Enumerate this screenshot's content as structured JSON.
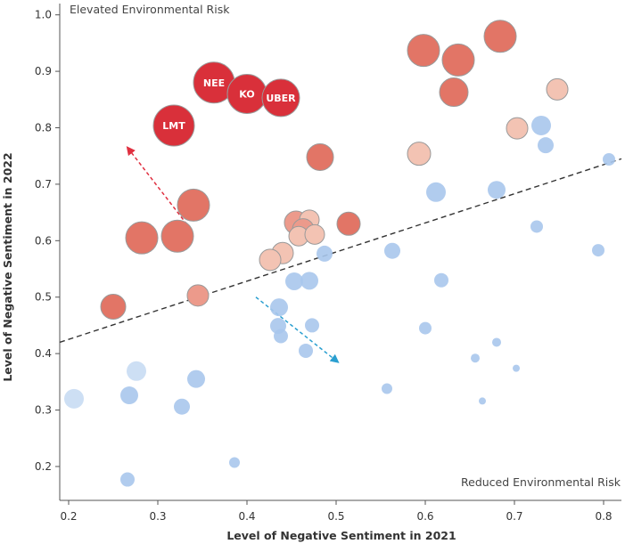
{
  "chart_data": {
    "type": "scatter",
    "xlabel": "Level of Negative Sentiment in 2021",
    "ylabel": "Level of Negative Sentiment in 2022",
    "xlim": [
      0.19,
      0.82
    ],
    "ylim": [
      0.14,
      1.02
    ],
    "xticks": [
      "0.2",
      "0.3",
      "0.4",
      "0.5",
      "0.6",
      "0.7",
      "0.8"
    ],
    "xtick_values": [
      0.2,
      0.3,
      0.4,
      0.5,
      0.6,
      0.7,
      0.8
    ],
    "yticks": [
      "0.2",
      "0.3",
      "0.4",
      "0.5",
      "0.6",
      "0.7",
      "0.8",
      "0.9",
      "1.0"
    ],
    "ytick_values": [
      0.2,
      0.3,
      0.4,
      0.5,
      0.6,
      0.7,
      0.8,
      0.9,
      1.0
    ],
    "grid": false,
    "annotations": {
      "top_left": "Elevated Environmental Risk",
      "bottom_right": "Reduced Environmental Risk"
    },
    "trend_line": {
      "x": [
        0.19,
        0.82
      ],
      "y": [
        0.42,
        0.745
      ]
    },
    "arrows": [
      {
        "from": [
          0.337,
          0.62
        ],
        "to": [
          0.266,
          0.765
        ],
        "color": "#e03040"
      },
      {
        "from": [
          0.41,
          0.5
        ],
        "to": [
          0.502,
          0.385
        ],
        "color": "#2a9fd0"
      }
    ],
    "colors": {
      "risk_dark": "#d9303a",
      "risk_mid": "#e27566",
      "risk_light": "#f3c3b3",
      "reduced_mid": "#a8c6ec",
      "reduced_light": "#c8dbf3",
      "trend": "#333333"
    },
    "points": [
      {
        "x": 0.318,
        "y": 0.804,
        "r": 23,
        "color": "#d9303a",
        "label": "LMT"
      },
      {
        "x": 0.363,
        "y": 0.88,
        "r": 23,
        "color": "#d9303a",
        "label": "NEE"
      },
      {
        "x": 0.4,
        "y": 0.86,
        "r": 22,
        "color": "#d9303a",
        "label": "KO"
      },
      {
        "x": 0.438,
        "y": 0.853,
        "r": 21,
        "color": "#d9303a",
        "label": "UBER"
      },
      {
        "x": 0.598,
        "y": 0.937,
        "r": 18,
        "color": "#e27566"
      },
      {
        "x": 0.637,
        "y": 0.92,
        "r": 18,
        "color": "#e27566"
      },
      {
        "x": 0.684,
        "y": 0.962,
        "r": 18,
        "color": "#e27566"
      },
      {
        "x": 0.632,
        "y": 0.863,
        "r": 16,
        "color": "#e27566"
      },
      {
        "x": 0.748,
        "y": 0.868,
        "r": 12,
        "color": "#f3c3b3"
      },
      {
        "x": 0.703,
        "y": 0.799,
        "r": 12,
        "color": "#f3c3b3"
      },
      {
        "x": 0.593,
        "y": 0.754,
        "r": 13,
        "color": "#f3c3b3"
      },
      {
        "x": 0.482,
        "y": 0.748,
        "r": 15,
        "color": "#e27566"
      },
      {
        "x": 0.34,
        "y": 0.663,
        "r": 18,
        "color": "#e27566"
      },
      {
        "x": 0.282,
        "y": 0.605,
        "r": 18,
        "color": "#e27566"
      },
      {
        "x": 0.322,
        "y": 0.608,
        "r": 18,
        "color": "#e27566"
      },
      {
        "x": 0.25,
        "y": 0.483,
        "r": 14,
        "color": "#e27566"
      },
      {
        "x": 0.345,
        "y": 0.503,
        "r": 12,
        "color": "#ec9a8b"
      },
      {
        "x": 0.514,
        "y": 0.63,
        "r": 13,
        "color": "#e27566"
      },
      {
        "x": 0.455,
        "y": 0.632,
        "r": 13,
        "color": "#ec9a8b"
      },
      {
        "x": 0.47,
        "y": 0.637,
        "r": 11,
        "color": "#f3c3b3"
      },
      {
        "x": 0.463,
        "y": 0.62,
        "r": 12,
        "color": "#ec9a8b"
      },
      {
        "x": 0.458,
        "y": 0.608,
        "r": 11,
        "color": "#f3c3b3"
      },
      {
        "x": 0.476,
        "y": 0.611,
        "r": 11,
        "color": "#f3c3b3"
      },
      {
        "x": 0.44,
        "y": 0.578,
        "r": 12,
        "color": "#f3c3b3"
      },
      {
        "x": 0.426,
        "y": 0.566,
        "r": 12,
        "color": "#f3c3b3"
      },
      {
        "x": 0.73,
        "y": 0.804,
        "r": 11,
        "color": "#a8c6ec"
      },
      {
        "x": 0.735,
        "y": 0.769,
        "r": 9,
        "color": "#a8c6ec"
      },
      {
        "x": 0.806,
        "y": 0.744,
        "r": 7,
        "color": "#a8c6ec"
      },
      {
        "x": 0.612,
        "y": 0.686,
        "r": 11,
        "color": "#a8c6ec"
      },
      {
        "x": 0.68,
        "y": 0.69,
        "r": 10,
        "color": "#a8c6ec"
      },
      {
        "x": 0.725,
        "y": 0.625,
        "r": 7,
        "color": "#a8c6ec"
      },
      {
        "x": 0.794,
        "y": 0.583,
        "r": 7,
        "color": "#a8c6ec"
      },
      {
        "x": 0.563,
        "y": 0.582,
        "r": 9,
        "color": "#a8c6ec"
      },
      {
        "x": 0.487,
        "y": 0.577,
        "r": 9,
        "color": "#a8c6ec"
      },
      {
        "x": 0.618,
        "y": 0.53,
        "r": 8,
        "color": "#a8c6ec"
      },
      {
        "x": 0.453,
        "y": 0.528,
        "r": 10,
        "color": "#a8c6ec"
      },
      {
        "x": 0.47,
        "y": 0.529,
        "r": 10,
        "color": "#a8c6ec"
      },
      {
        "x": 0.436,
        "y": 0.482,
        "r": 10,
        "color": "#a8c6ec"
      },
      {
        "x": 0.435,
        "y": 0.449,
        "r": 9,
        "color": "#a8c6ec"
      },
      {
        "x": 0.473,
        "y": 0.45,
        "r": 8,
        "color": "#a8c6ec"
      },
      {
        "x": 0.438,
        "y": 0.431,
        "r": 8,
        "color": "#a8c6ec"
      },
      {
        "x": 0.466,
        "y": 0.405,
        "r": 8,
        "color": "#a8c6ec"
      },
      {
        "x": 0.6,
        "y": 0.445,
        "r": 7,
        "color": "#a8c6ec"
      },
      {
        "x": 0.68,
        "y": 0.42,
        "r": 5,
        "color": "#a8c6ec"
      },
      {
        "x": 0.656,
        "y": 0.392,
        "r": 5,
        "color": "#a8c6ec"
      },
      {
        "x": 0.702,
        "y": 0.374,
        "r": 4,
        "color": "#a8c6ec"
      },
      {
        "x": 0.276,
        "y": 0.369,
        "r": 11,
        "color": "#c8dbf3"
      },
      {
        "x": 0.343,
        "y": 0.355,
        "r": 10,
        "color": "#a8c6ec"
      },
      {
        "x": 0.206,
        "y": 0.32,
        "r": 11,
        "color": "#c8dbf3"
      },
      {
        "x": 0.268,
        "y": 0.326,
        "r": 10,
        "color": "#a8c6ec"
      },
      {
        "x": 0.327,
        "y": 0.306,
        "r": 9,
        "color": "#a8c6ec"
      },
      {
        "x": 0.557,
        "y": 0.338,
        "r": 6,
        "color": "#a8c6ec"
      },
      {
        "x": 0.664,
        "y": 0.316,
        "r": 4,
        "color": "#a8c6ec"
      },
      {
        "x": 0.386,
        "y": 0.207,
        "r": 6,
        "color": "#a8c6ec"
      },
      {
        "x": 0.266,
        "y": 0.177,
        "r": 8,
        "color": "#a8c6ec"
      }
    ]
  }
}
